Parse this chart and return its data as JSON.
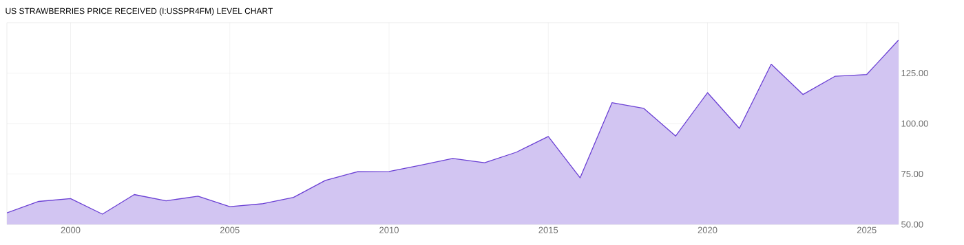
{
  "chart_data": {
    "type": "area",
    "title": "US STRAWBERRIES PRICE RECEIVED (I:USSPR4FM) LEVEL CHART",
    "x": [
      1998,
      1999,
      2000,
      2001,
      2002,
      2003,
      2004,
      2005,
      2006,
      2007,
      2008,
      2009,
      2010,
      2011,
      2012,
      2013,
      2014,
      2015,
      2016,
      2017,
      2018,
      2019,
      2020,
      2021,
      2022,
      2023,
      2024,
      2025,
      2026
    ],
    "values": [
      55.7,
      61.4,
      62.8,
      55.1,
      64.8,
      61.7,
      64.0,
      58.8,
      60.2,
      63.4,
      71.8,
      76.1,
      76.2,
      79.4,
      82.7,
      80.6,
      85.8,
      93.6,
      73.1,
      110.3,
      107.5,
      93.8,
      115.3,
      97.6,
      129.4,
      114.4,
      123.4,
      124.3,
      141.4
    ],
    "color": "#6a3fd4",
    "xlim": [
      1998,
      2026
    ],
    "xticks": [
      2000,
      2005,
      2010,
      2015,
      2020,
      2025
    ],
    "ylim": [
      50,
      150
    ],
    "yticks": [
      {
        "value": 50,
        "label": "50.00"
      },
      {
        "value": 75,
        "label": "75.00"
      },
      {
        "value": 100,
        "label": "100.00"
      },
      {
        "value": 125,
        "label": "125.00"
      }
    ],
    "grid": true
  }
}
